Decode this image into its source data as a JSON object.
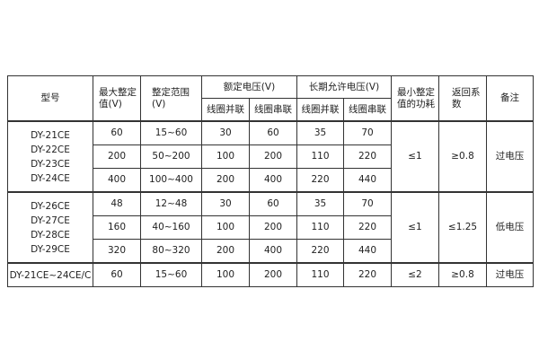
{
  "header": {
    "model": "型号",
    "max_value": "最大整定值(V)",
    "range": "整定范围(V)",
    "rated": "额定电压(V)",
    "long_term": "长期允许电压(V)",
    "parallel": "线圈并联",
    "series": "线圈串联",
    "power": "最小整定值的功耗",
    "return": "返回系数",
    "remark": "备注"
  },
  "groups": [
    {
      "models": [
        "DY-21CE",
        "DY-22CE",
        "DY-23CE",
        "DY-24CE"
      ],
      "power": "≤1",
      "return": "≥0.8",
      "remark": "过电压",
      "rows": [
        [
          "60",
          "15~60",
          "30",
          "60",
          "35",
          "70"
        ],
        [
          "200",
          "50~200",
          "100",
          "200",
          "110",
          "220"
        ],
        [
          "400",
          "100~400",
          "200",
          "400",
          "220",
          "440"
        ]
      ]
    },
    {
      "models": [
        "DY-26CE",
        "DY-27CE",
        "DY-28CE",
        "DY-29CE"
      ],
      "power": "≤1",
      "return": "≤1.25",
      "remark": "低电压",
      "rows": [
        [
          "48",
          "12~48",
          "30",
          "60",
          "35",
          "70"
        ],
        [
          "160",
          "40~160",
          "100",
          "200",
          "110",
          "220"
        ],
        [
          "320",
          "80~320",
          "200",
          "400",
          "220",
          "440"
        ]
      ]
    },
    {
      "models": [
        "DY-21CE~24CE/C"
      ],
      "power": "≤2",
      "return": "≥0.8",
      "remark": "过电压",
      "rows": [
        [
          "60",
          "15~60",
          "100",
          "200",
          "110",
          "220"
        ]
      ]
    }
  ]
}
